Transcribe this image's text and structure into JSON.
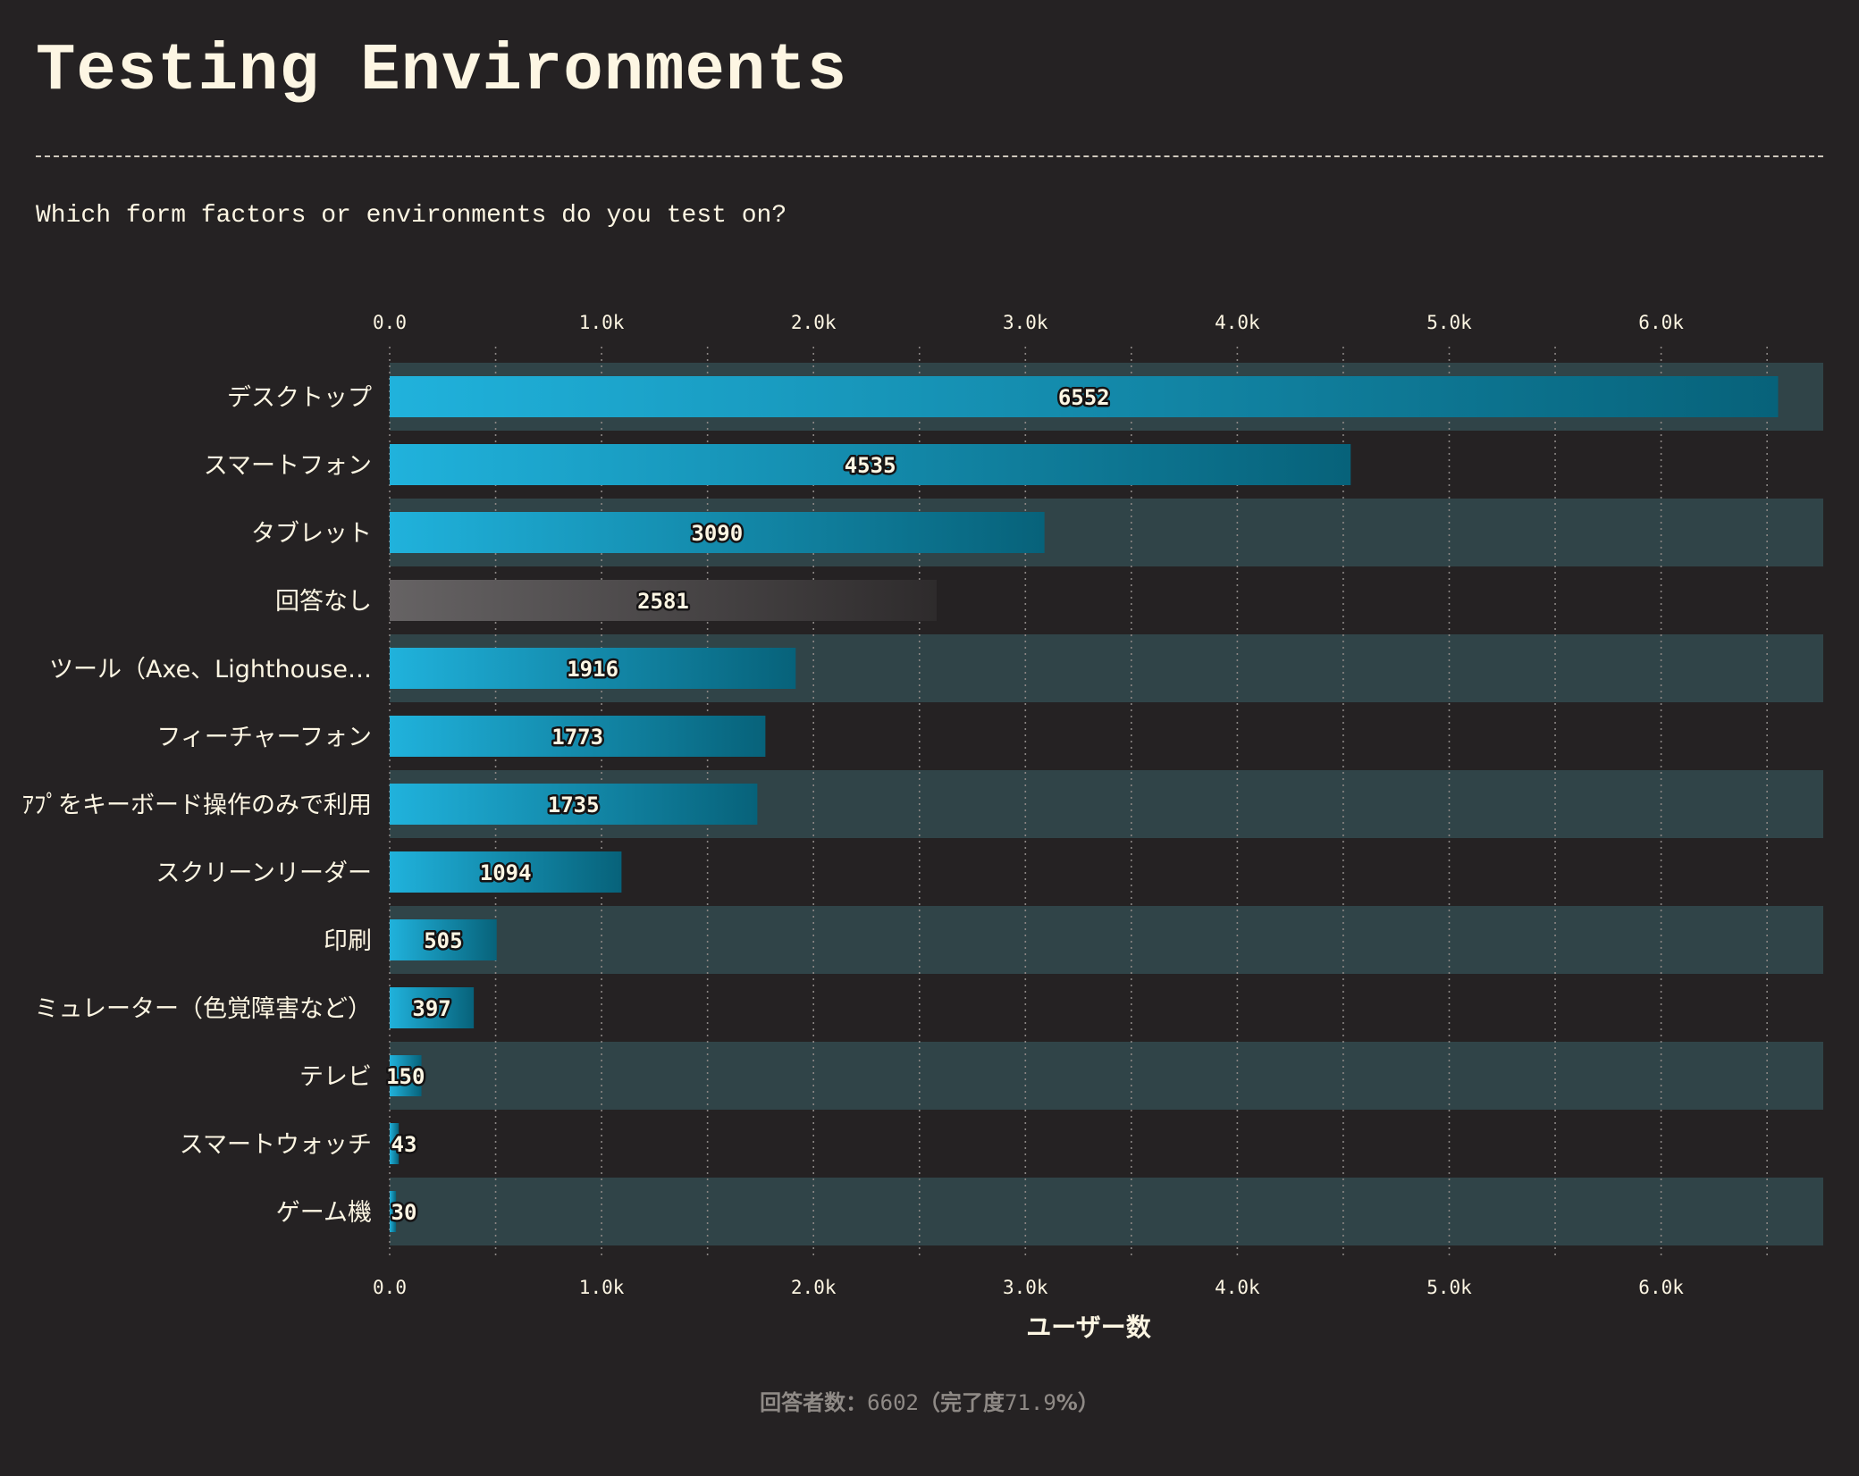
{
  "title": "Testing Environments",
  "subtitle": "Which form factors or environments do you test on?",
  "footer": {
    "label_respondents": "回答者数：",
    "respondents": "6602",
    "label_completion_open": "（完了度",
    "completion": "71.9",
    "label_completion_close": "%）"
  },
  "colors": {
    "background": "#252223",
    "bar_gradient_start": "#20b2dc",
    "bar_gradient_end": "#07627a",
    "no_answer_gradient_start": "#666364",
    "no_answer_gradient_end": "#2e2b2c",
    "band": "#304448",
    "text": "#fdf6e3"
  },
  "chart_data": {
    "type": "bar",
    "orientation": "horizontal",
    "categories": [
      "デスクトップ",
      "スマートフォン",
      "タブレット",
      "回答なし",
      "ツール（Axe、Lighthouse…",
      "フィーチャーフォン",
      "ｱﾌﾟをキーボード操作のみで利用",
      "スクリーンリーダー",
      "印刷",
      "ミュレーター（色覚障害など）",
      "テレビ",
      "スマートウォッチ",
      "ゲーム機"
    ],
    "values": [
      6552,
      4535,
      3090,
      2581,
      1916,
      1773,
      1735,
      1094,
      505,
      397,
      150,
      43,
      30
    ],
    "highlight_gray": [
      "回答なし"
    ],
    "xlabel": "ユーザー数",
    "x_ticks": [
      "0.0",
      "1.0k",
      "2.0k",
      "3.0k",
      "4.0k",
      "5.0k",
      "6.0k"
    ],
    "xlim": [
      0,
      6766
    ],
    "grid": true,
    "axis_position": "top-and-bottom"
  }
}
